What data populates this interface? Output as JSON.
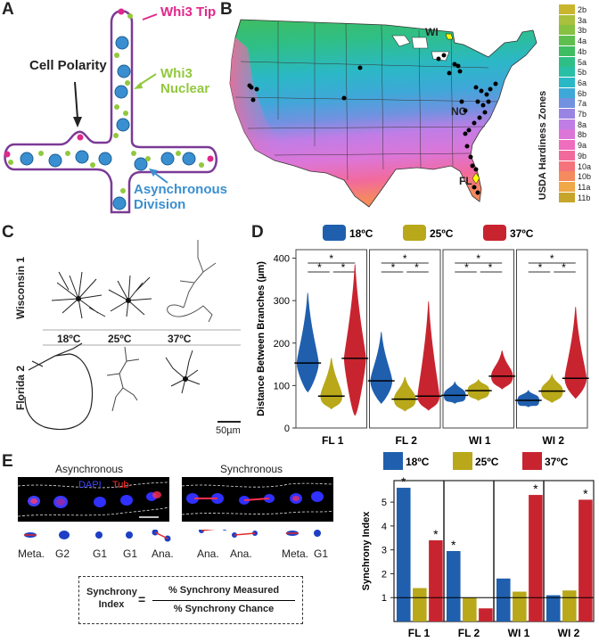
{
  "panels": {
    "a": "A",
    "b": "B",
    "c": "C",
    "d": "D",
    "e": "E"
  },
  "panel_a": {
    "labels": {
      "tip": "Whi3 Tip",
      "polarity": "Cell Polarity",
      "nuclear": "Whi3 Nuclear",
      "division": "Asynchronous Division"
    },
    "colors": {
      "outline": "#7b3a96",
      "nucleus": "#3a8fd0",
      "nucleus_edge": "#1d5f96",
      "green": "#92c83e",
      "magenta": "#e0288a"
    }
  },
  "panel_b": {
    "legend_title": "USDA Hardiness Zones",
    "zones": [
      {
        "label": "2b",
        "color": "#c9b52e"
      },
      {
        "label": "3a",
        "color": "#a9bf3e"
      },
      {
        "label": "3b",
        "color": "#86c142"
      },
      {
        "label": "4a",
        "color": "#5fbf4e"
      },
      {
        "label": "4b",
        "color": "#3fbd63"
      },
      {
        "label": "5a",
        "color": "#2fbf86"
      },
      {
        "label": "5b",
        "color": "#28bfa6"
      },
      {
        "label": "6a",
        "color": "#2bb8c6"
      },
      {
        "label": "6b",
        "color": "#3ea8d8"
      },
      {
        "label": "7a",
        "color": "#7092e0"
      },
      {
        "label": "7b",
        "color": "#9a84e3"
      },
      {
        "label": "8a",
        "color": "#c07de6"
      },
      {
        "label": "8b",
        "color": "#dc76d8"
      },
      {
        "label": "9a",
        "color": "#ee6dbd"
      },
      {
        "label": "9b",
        "color": "#f26a9c"
      },
      {
        "label": "10a",
        "color": "#f5737c"
      },
      {
        "label": "10b",
        "color": "#f58a5e"
      },
      {
        "label": "11a",
        "color": "#f0a848"
      },
      {
        "label": "11b",
        "color": "#c6a52a"
      }
    ],
    "sites": {
      "wi": "WI",
      "nc": "NC",
      "fl": "FL"
    }
  },
  "panel_c": {
    "row_labels": {
      "wisconsin": "Wisconsin 1",
      "florida": "Florida 2"
    },
    "temps": [
      "18ºC",
      "25ºC",
      "37ºC"
    ],
    "scale_bar": "50µm"
  },
  "chart_data": [
    {
      "type": "violin",
      "title": "",
      "ylabel": "Distance Between Branches (µm)",
      "ylim": [
        0,
        420
      ],
      "yticks": [
        0,
        100,
        200,
        300,
        400
      ],
      "legend": [
        {
          "name": "18ºC",
          "color": "#1f5fae"
        },
        {
          "name": "25ºC",
          "color": "#b8a81a"
        },
        {
          "name": "37ºC",
          "color": "#c8242f"
        }
      ],
      "categories": [
        "FL 1",
        "FL 2",
        "WI 1",
        "WI 2"
      ],
      "series": [
        {
          "name": "18ºC",
          "median": [
            153,
            111,
            77,
            65
          ],
          "min": [
            85,
            58,
            58,
            50
          ],
          "max": [
            318,
            226,
            108,
            88
          ]
        },
        {
          "name": "25ºC",
          "median": [
            75,
            68,
            88,
            87
          ],
          "min": [
            45,
            40,
            65,
            60
          ],
          "max": [
            165,
            120,
            114,
            125
          ]
        },
        {
          "name": "37ºC",
          "median": [
            164,
            75,
            122,
            117
          ],
          "min": [
            30,
            42,
            92,
            70
          ],
          "max": [
            385,
            298,
            182,
            285
          ]
        }
      ],
      "significance_marker": "*"
    },
    {
      "type": "bar",
      "title": "",
      "ylabel": "Synchrony Index",
      "ylim": [
        0,
        5.9
      ],
      "yticks": [
        1,
        2,
        3,
        4,
        5
      ],
      "reference_line": 1,
      "legend": [
        {
          "name": "18ºC",
          "color": "#1f5fae"
        },
        {
          "name": "25ºC",
          "color": "#b8a81a"
        },
        {
          "name": "37ºC",
          "color": "#c8242f"
        }
      ],
      "categories": [
        "FL 1",
        "FL 2",
        "WI 1",
        "WI 2"
      ],
      "series": [
        {
          "name": "18ºC",
          "values": [
            5.6,
            2.95,
            1.8,
            1.1
          ],
          "significant": [
            true,
            true,
            false,
            false
          ]
        },
        {
          "name": "25ºC",
          "values": [
            1.4,
            1.0,
            1.25,
            1.3
          ],
          "significant": [
            false,
            false,
            false,
            false
          ]
        },
        {
          "name": "37ºC",
          "values": [
            3.4,
            0.55,
            5.3,
            5.1
          ],
          "significant": [
            true,
            false,
            true,
            true
          ]
        }
      ],
      "significance_marker": "*"
    }
  ],
  "panel_e": {
    "asynchronous": "Asynchronous",
    "synchronous": "Synchronous",
    "stain_dapi": "DAPI",
    "stain_tub": "Tub",
    "async_stages": [
      "Meta.",
      "G2",
      "G1",
      "G1",
      "Ana."
    ],
    "sync_stages": [
      "Ana.",
      "Ana.",
      "Meta.",
      "G1"
    ],
    "formula": {
      "lhs_top": "Synchrony",
      "lhs_bottom": "Index",
      "eq": "=",
      "numerator": "% Synchrony Measured",
      "denominator": "% Synchrony Chance"
    }
  }
}
